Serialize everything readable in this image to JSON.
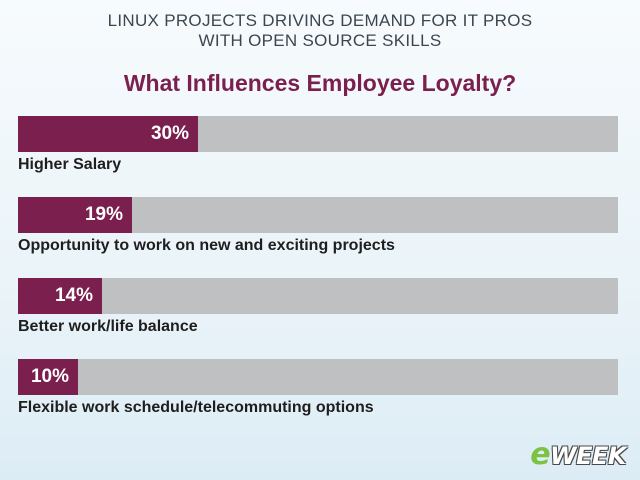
{
  "header": {
    "line1": "LINUX PROJECTS DRIVING DEMAND FOR IT PROS",
    "line2": "WITH OPEN SOURCE SKILLS"
  },
  "colors": {
    "bar_fill": "#7a1f4e",
    "bar_track": "#bfc0c2",
    "title": "#7a1f4e"
  },
  "chart_data": {
    "type": "bar",
    "orientation": "horizontal",
    "title": "What Influences Employee Loyalty?",
    "categories": [
      "Higher Salary",
      "Opportunity to work on new and exciting projects",
      "Better work/life balance",
      "Flexible work schedule/telecommuting options"
    ],
    "values": [
      30,
      19,
      14,
      10
    ],
    "value_labels": [
      "30%",
      "19%",
      "14%",
      "10%"
    ],
    "xlim": [
      0,
      100
    ],
    "grid": false,
    "legend": "none"
  },
  "logo": {
    "e": "e",
    "rest": "WEEK"
  }
}
